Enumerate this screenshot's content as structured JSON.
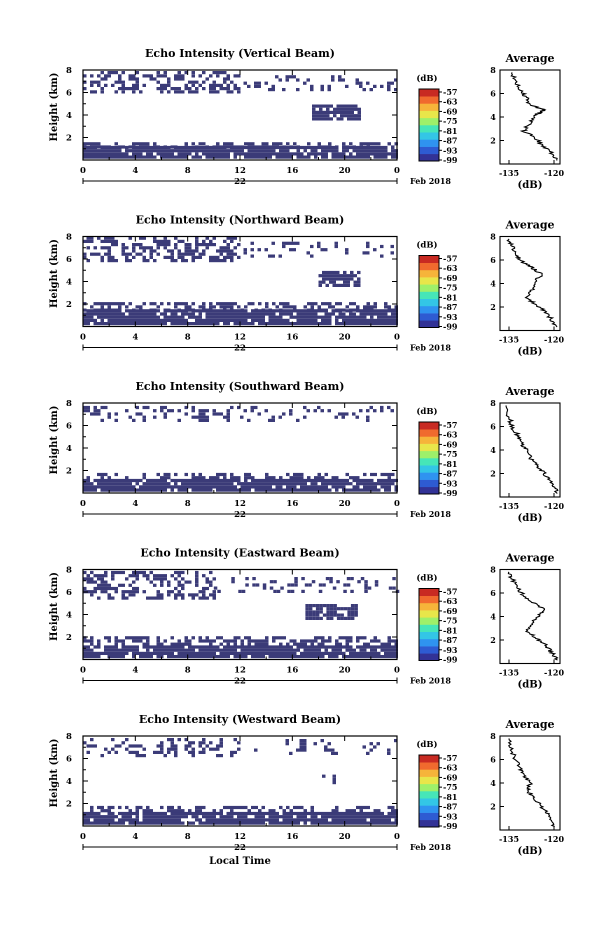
{
  "colors": {
    "echo": "#3b3b78",
    "colorbar": [
      "#323296",
      "#2e5bd2",
      "#2f93f0",
      "#33c6e6",
      "#46e6b8",
      "#9ef06a",
      "#e8e64a",
      "#f6b43a",
      "#f06a2e",
      "#c82a22"
    ]
  },
  "panels": [
    {
      "title": "Echo Intensity (Vertical Beam)",
      "bands": [
        {
          "lo": 0.4,
          "hi": 1.3,
          "density": 0.9
        },
        {
          "lo": 1.3,
          "hi": 1.8,
          "density": 0.55
        },
        {
          "lo": 6.2,
          "hi": 8.0,
          "density": 0.45,
          "tend": 12
        },
        {
          "lo": 6.4,
          "hi": 7.6,
          "density": 0.2,
          "tstart": 12
        },
        {
          "lo": 3.8,
          "hi": 5.2,
          "density": 0.8,
          "tstart": 17.5,
          "tend": 21
        }
      ]
    },
    {
      "title": "Echo Intensity (Northward Beam)",
      "bands": [
        {
          "lo": 0.4,
          "hi": 1.6,
          "density": 0.9
        },
        {
          "lo": 1.6,
          "hi": 2.3,
          "density": 0.5
        },
        {
          "lo": 6.0,
          "hi": 8.0,
          "density": 0.45,
          "tend": 12
        },
        {
          "lo": 6.4,
          "hi": 7.6,
          "density": 0.2,
          "tstart": 12
        },
        {
          "lo": 3.8,
          "hi": 5.0,
          "density": 0.75,
          "tstart": 18,
          "tend": 21
        }
      ]
    },
    {
      "title": "Echo Intensity (Southward Beam)",
      "bands": [
        {
          "lo": 0.4,
          "hi": 1.5,
          "density": 0.9
        },
        {
          "lo": 1.5,
          "hi": 2.0,
          "density": 0.45
        },
        {
          "lo": 6.6,
          "hi": 8.0,
          "density": 0.3,
          "tend": 12
        },
        {
          "lo": 6.6,
          "hi": 8.0,
          "density": 0.15,
          "tstart": 12
        }
      ]
    },
    {
      "title": "Echo Intensity (Eastward Beam)",
      "bands": [
        {
          "lo": 0.4,
          "hi": 1.5,
          "density": 0.9
        },
        {
          "lo": 1.5,
          "hi": 2.2,
          "density": 0.5
        },
        {
          "lo": 5.6,
          "hi": 8.0,
          "density": 0.45,
          "tend": 10
        },
        {
          "lo": 6.2,
          "hi": 7.6,
          "density": 0.2,
          "tstart": 10
        },
        {
          "lo": 3.8,
          "hi": 5.0,
          "density": 0.8,
          "tstart": 17,
          "tend": 21
        }
      ]
    },
    {
      "title": "Echo Intensity (Westward Beam)",
      "bands": [
        {
          "lo": 0.4,
          "hi": 1.5,
          "density": 0.9
        },
        {
          "lo": 1.5,
          "hi": 2.0,
          "density": 0.45
        },
        {
          "lo": 6.4,
          "hi": 8.0,
          "density": 0.3,
          "tend": 12
        },
        {
          "lo": 6.6,
          "hi": 8.0,
          "density": 0.15,
          "tstart": 12
        },
        {
          "lo": 4.0,
          "hi": 4.6,
          "density": 0.3,
          "tstart": 18,
          "tend": 20
        }
      ]
    }
  ],
  "common": {
    "ylabel": "Height (km)",
    "yticks": [
      "2",
      "4",
      "6",
      "8"
    ],
    "xticks": [
      "0",
      "4",
      "8",
      "12",
      "16",
      "20",
      "0"
    ],
    "date_day": "22",
    "date_month": "Feb 2018",
    "xlabel": "Local Time",
    "cbar_unit": "(dB)",
    "cbar_ticks": [
      "-57",
      "-63",
      "-69",
      "-75",
      "-81",
      "-87",
      "-93",
      "-99"
    ],
    "avg_title": "Average",
    "avg_xticks": [
      "-135",
      "-120"
    ],
    "avg_xlabel": "(dB)"
  },
  "chart_data": [
    {
      "type": "heatmap",
      "title": "Echo Intensity (Vertical Beam)",
      "xlabel": "",
      "ylabel": "Height (km)",
      "xlim": [
        0,
        24
      ],
      "ylim": [
        0,
        8
      ],
      "colorbar_range_db": [
        -99,
        -57
      ]
    },
    {
      "type": "line",
      "title": "Average",
      "xlabel": "(dB)",
      "xlim": [
        -138,
        -118
      ],
      "ylim": [
        0,
        8
      ],
      "x": [
        -119,
        -121,
        -124,
        -126,
        -130,
        -128,
        -126,
        -123,
        -128,
        -129,
        -131,
        -133,
        -134
      ],
      "y": [
        0.3,
        1.0,
        1.6,
        2.2,
        2.8,
        3.5,
        4.2,
        4.6,
        5.0,
        5.6,
        6.2,
        7.0,
        7.8
      ]
    },
    {
      "type": "heatmap",
      "title": "Echo Intensity (Northward Beam)",
      "xlabel": "",
      "ylabel": "Height (km)",
      "xlim": [
        0,
        24
      ],
      "ylim": [
        0,
        8
      ],
      "colorbar_range_db": [
        -99,
        -57
      ]
    },
    {
      "type": "line",
      "title": "Average",
      "xlabel": "(dB)",
      "xlim": [
        -138,
        -118
      ],
      "ylim": [
        0,
        8
      ],
      "x": [
        -119,
        -121,
        -123,
        -126,
        -129,
        -127,
        -126,
        -124,
        -127,
        -130,
        -133,
        -134,
        -135
      ],
      "y": [
        0.3,
        1.0,
        1.6,
        2.2,
        2.8,
        3.5,
        4.2,
        4.8,
        5.3,
        5.8,
        6.4,
        7.2,
        7.8
      ]
    },
    {
      "type": "heatmap",
      "title": "Echo Intensity (Southward Beam)",
      "xlabel": "",
      "ylabel": "Height (km)",
      "xlim": [
        0,
        24
      ],
      "ylim": [
        0,
        8
      ],
      "colorbar_range_db": [
        -99,
        -57
      ]
    },
    {
      "type": "line",
      "title": "Average",
      "xlabel": "(dB)",
      "xlim": [
        -138,
        -118
      ],
      "ylim": [
        0,
        8
      ],
      "x": [
        -119,
        -120,
        -122,
        -124,
        -126,
        -128,
        -129,
        -131,
        -132,
        -134,
        -135,
        -136
      ],
      "y": [
        0.3,
        1.0,
        1.6,
        2.2,
        2.8,
        3.4,
        4.0,
        4.6,
        5.2,
        6.0,
        6.8,
        7.8
      ]
    },
    {
      "type": "heatmap",
      "title": "Echo Intensity (Eastward Beam)",
      "xlabel": "",
      "ylabel": "Height (km)",
      "xlim": [
        0,
        24
      ],
      "ylim": [
        0,
        8
      ],
      "colorbar_range_db": [
        -99,
        -57
      ]
    },
    {
      "type": "line",
      "title": "Average",
      "xlabel": "(dB)",
      "xlim": [
        -138,
        -118
      ],
      "ylim": [
        0,
        8
      ],
      "x": [
        -119,
        -121,
        -123,
        -126,
        -129,
        -127,
        -125,
        -123,
        -127,
        -130,
        -132,
        -134,
        -135
      ],
      "y": [
        0.3,
        1.0,
        1.6,
        2.2,
        2.8,
        3.5,
        4.1,
        4.6,
        5.2,
        5.8,
        6.4,
        7.2,
        7.8
      ]
    },
    {
      "type": "heatmap",
      "title": "Echo Intensity (Westward Beam)",
      "xlabel": "Local Time",
      "ylabel": "Height (km)",
      "xlim": [
        0,
        24
      ],
      "ylim": [
        0,
        8
      ],
      "colorbar_range_db": [
        -99,
        -57
      ]
    },
    {
      "type": "line",
      "title": "Average",
      "xlabel": "(dB)",
      "xlim": [
        -138,
        -118
      ],
      "ylim": [
        0,
        8
      ],
      "x": [
        -120,
        -121,
        -123,
        -125,
        -127,
        -129,
        -128,
        -130,
        -131,
        -133,
        -134,
        -135
      ],
      "y": [
        0.3,
        1.0,
        1.6,
        2.2,
        2.8,
        3.4,
        4.0,
        4.6,
        5.2,
        6.0,
        6.8,
        7.8
      ]
    }
  ]
}
